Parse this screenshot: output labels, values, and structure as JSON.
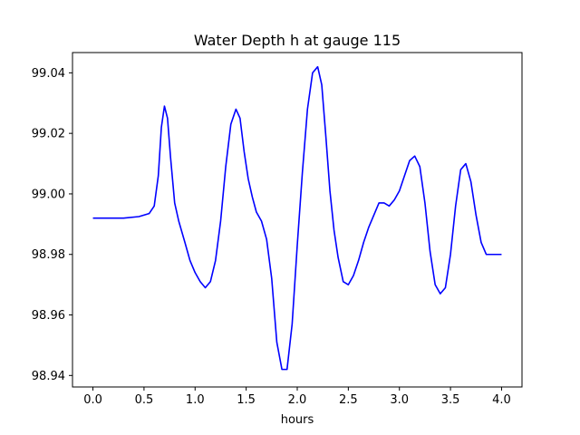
{
  "chart_data": {
    "type": "line",
    "title": "Water Depth h at gauge 115",
    "xlabel": "hours",
    "ylabel": "",
    "xlim": [
      -0.2,
      4.2
    ],
    "ylim": [
      98.9362,
      99.0467
    ],
    "xticks": [
      0.0,
      0.5,
      1.0,
      1.5,
      2.0,
      2.5,
      3.0,
      3.5,
      4.0
    ],
    "xtick_labels": [
      "0.0",
      "0.5",
      "1.0",
      "1.5",
      "2.0",
      "2.5",
      "3.0",
      "3.5",
      "4.0"
    ],
    "yticks": [
      98.94,
      98.96,
      98.98,
      99.0,
      99.02,
      99.04
    ],
    "ytick_labels": [
      "98.94",
      "98.96",
      "98.98",
      "99.00",
      "99.02",
      "99.04"
    ],
    "grid": false,
    "series": [
      {
        "name": "",
        "color": "#0000ff",
        "x": [
          0.0,
          0.3,
          0.45,
          0.55,
          0.6,
          0.64,
          0.67,
          0.7,
          0.73,
          0.76,
          0.8,
          0.84,
          0.9,
          0.95,
          1.0,
          1.05,
          1.1,
          1.15,
          1.2,
          1.25,
          1.3,
          1.35,
          1.4,
          1.44,
          1.48,
          1.52,
          1.56,
          1.6,
          1.65,
          1.7,
          1.75,
          1.8,
          1.85,
          1.9,
          1.95,
          2.0,
          2.05,
          2.1,
          2.15,
          2.2,
          2.24,
          2.28,
          2.32,
          2.36,
          2.4,
          2.45,
          2.5,
          2.55,
          2.6,
          2.65,
          2.7,
          2.75,
          2.8,
          2.85,
          2.9,
          2.95,
          3.0,
          3.05,
          3.1,
          3.15,
          3.2,
          3.25,
          3.3,
          3.35,
          3.4,
          3.45,
          3.5,
          3.55,
          3.6,
          3.65,
          3.7,
          3.75,
          3.8,
          3.85,
          3.9,
          3.95,
          4.0
        ],
        "y": [
          98.992,
          98.992,
          98.9925,
          98.9935,
          98.996,
          99.006,
          99.022,
          99.029,
          99.025,
          99.012,
          98.997,
          98.991,
          98.984,
          98.978,
          98.974,
          98.971,
          98.969,
          98.971,
          98.978,
          98.991,
          99.009,
          99.023,
          99.028,
          99.025,
          99.014,
          99.005,
          98.999,
          98.994,
          98.991,
          98.985,
          98.972,
          98.951,
          98.942,
          98.942,
          98.957,
          98.983,
          99.007,
          99.028,
          99.04,
          99.042,
          99.036,
          99.019,
          99.001,
          98.988,
          98.979,
          98.971,
          98.97,
          98.973,
          98.978,
          98.984,
          98.989,
          98.993,
          98.997,
          98.997,
          98.996,
          98.998,
          99.001,
          99.006,
          99.011,
          99.0125,
          99.009,
          98.997,
          98.981,
          98.97,
          98.967,
          98.969,
          98.98,
          98.996,
          99.008,
          99.01,
          99.004,
          98.993,
          98.984,
          98.98,
          98.98,
          98.98,
          98.98
        ]
      }
    ]
  }
}
